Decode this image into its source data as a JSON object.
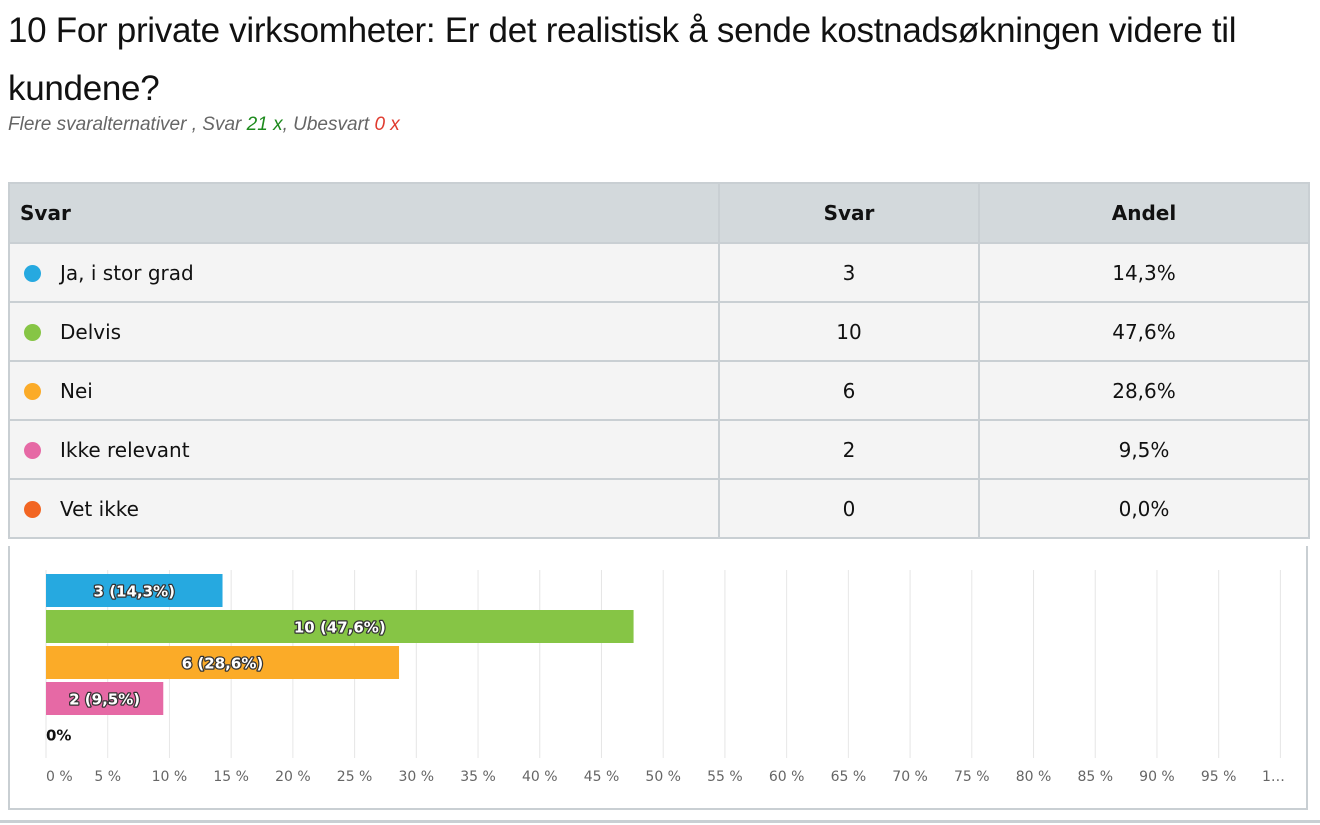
{
  "question": {
    "title": "10 For private virksomheter: Er det realistisk å sende kostnadsøkningen videre til kundene?",
    "type_label": "Flere svaralternativer",
    "answered_label": "Svar",
    "answered_value": "21 x",
    "unanswered_label": "Ubesvart",
    "unanswered_value": "0 x"
  },
  "table": {
    "headers": {
      "answer": "Svar",
      "count": "Svar",
      "share": "Andel"
    },
    "rows": [
      {
        "label": "Ja, i stor grad",
        "count": "3",
        "share": "14,3%",
        "color": "#26a9e0"
      },
      {
        "label": "Delvis",
        "count": "10",
        "share": "47,6%",
        "color": "#86c545"
      },
      {
        "label": "Nei",
        "count": "6",
        "share": "28,6%",
        "color": "#fbab28"
      },
      {
        "label": "Ikke relevant",
        "count": "2",
        "share": "9,5%",
        "color": "#e669a5"
      },
      {
        "label": "Vet ikke",
        "count": "0",
        "share": "0,0%",
        "color": "#f26522"
      }
    ]
  },
  "chart_data": {
    "type": "bar",
    "orientation": "horizontal",
    "categories": [
      "Ja, i stor grad",
      "Delvis",
      "Nei",
      "Ikke relevant",
      "Vet ikke"
    ],
    "values": [
      14.3,
      47.6,
      28.6,
      9.5,
      0.0
    ],
    "data_labels": [
      "3 (14,3%)",
      "10 (47,6%)",
      "6 (28,6%)",
      "2 (9,5%)",
      "0%"
    ],
    "colors": [
      "#26a9e0",
      "#86c545",
      "#fbab28",
      "#e669a5",
      "#f26522"
    ],
    "xlim": [
      0,
      100
    ],
    "x_ticks": [
      "0 %",
      "5 %",
      "10 %",
      "15 %",
      "20 %",
      "25 %",
      "30 %",
      "35 %",
      "40 %",
      "45 %",
      "50 %",
      "55 %",
      "60 %",
      "65 %",
      "70 %",
      "75 %",
      "80 %",
      "85 %",
      "90 %",
      "95 %",
      "1…"
    ],
    "grid": true,
    "title": "",
    "xlabel": "",
    "ylabel": ""
  }
}
